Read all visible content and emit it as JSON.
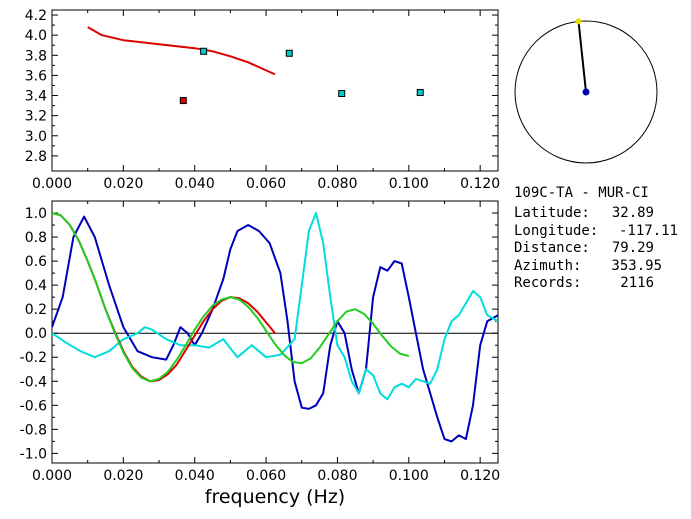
{
  "station_info": {
    "title": "109C-TA - MUR-CI",
    "rows": [
      {
        "label": "Latitude:",
        "value": "32.89"
      },
      {
        "label": "Longitude:",
        "value": "-117.11"
      },
      {
        "label": "Distance:",
        "value": "79.29"
      },
      {
        "label": "Azimuth:",
        "value": "353.95"
      },
      {
        "label": "Records:",
        "value": "2116"
      }
    ]
  },
  "azimuth_indicator": {
    "azimuth_deg": 353.95,
    "circle_color": "#000000",
    "center_color": "#0000aa",
    "tip_color": "#e0e000"
  },
  "chart_data": [
    {
      "type": "scatter",
      "title": "",
      "xlabel": "",
      "ylabel": "",
      "xlim": [
        0.0,
        0.125
      ],
      "ylim": [
        2.65,
        4.25
      ],
      "xticks": [
        "0.000",
        "0.020",
        "0.040",
        "0.060",
        "0.080",
        "0.100",
        "0.120"
      ],
      "xtick_values": [
        0.0,
        0.02,
        0.04,
        0.06,
        0.08,
        0.1,
        0.12
      ],
      "yticks": [
        "2.8",
        "3.0",
        "3.2",
        "3.4",
        "3.6",
        "3.8",
        "4.0",
        "4.2"
      ],
      "ytick_values": [
        2.8,
        3.0,
        3.2,
        3.4,
        3.6,
        3.8,
        4.0,
        4.2
      ],
      "grid": false,
      "series": [
        {
          "kind": "line",
          "color": "#dd0000",
          "x": [
            0.01,
            0.014,
            0.02,
            0.03,
            0.04,
            0.045,
            0.05,
            0.055,
            0.06,
            0.0625
          ],
          "y": [
            4.08,
            4.0,
            3.95,
            3.91,
            3.87,
            3.84,
            3.79,
            3.73,
            3.65,
            3.61
          ]
        },
        {
          "kind": "points",
          "color": "#00cccc",
          "x": [
            0.0425,
            0.0665,
            0.0812,
            0.1032
          ],
          "y": [
            3.84,
            3.82,
            3.42,
            3.43
          ]
        },
        {
          "kind": "points",
          "color": "#dd0000",
          "x": [
            0.0368
          ],
          "y": [
            3.35
          ]
        }
      ]
    },
    {
      "type": "line",
      "title": "",
      "xlabel": "frequency (Hz)",
      "ylabel": "",
      "xlim": [
        0.0,
        0.125
      ],
      "ylim": [
        -1.08,
        1.1
      ],
      "xticks": [
        "0.000",
        "0.020",
        "0.040",
        "0.060",
        "0.080",
        "0.100",
        "0.120"
      ],
      "xtick_values": [
        0.0,
        0.02,
        0.04,
        0.06,
        0.08,
        0.1,
        0.12
      ],
      "yticks": [
        "1.0",
        "0.8",
        "0.6",
        "0.4",
        "0.2",
        "0.0",
        "-0.2",
        "-0.4",
        "-0.6",
        "-0.8",
        "-1.0"
      ],
      "ytick_values": [
        1.0,
        0.8,
        0.6,
        0.4,
        0.2,
        0.0,
        -0.2,
        -0.4,
        -0.6,
        -0.8,
        -1.0
      ],
      "zero_line": true,
      "grid": false,
      "series": [
        {
          "color": "#0000bb",
          "x": [
            0.0,
            0.003,
            0.006,
            0.009,
            0.012,
            0.016,
            0.02,
            0.024,
            0.028,
            0.032,
            0.034,
            0.036,
            0.038,
            0.04,
            0.042,
            0.045,
            0.048,
            0.05,
            0.052,
            0.055,
            0.058,
            0.061,
            0.064,
            0.066,
            0.068,
            0.07,
            0.072,
            0.074,
            0.076,
            0.078,
            0.08,
            0.082,
            0.084,
            0.086,
            0.088,
            0.09,
            0.092,
            0.094,
            0.096,
            0.098,
            0.1,
            0.102,
            0.104,
            0.106,
            0.108,
            0.11,
            0.112,
            0.114,
            0.116,
            0.118,
            0.12,
            0.122,
            0.125
          ],
          "y": [
            0.05,
            0.3,
            0.8,
            0.97,
            0.8,
            0.4,
            0.05,
            -0.15,
            -0.2,
            -0.22,
            -0.1,
            0.05,
            0.0,
            -0.1,
            0.0,
            0.2,
            0.45,
            0.7,
            0.85,
            0.9,
            0.85,
            0.75,
            0.5,
            0.1,
            -0.4,
            -0.62,
            -0.63,
            -0.6,
            -0.5,
            -0.1,
            0.1,
            0.0,
            -0.3,
            -0.5,
            -0.3,
            0.3,
            0.55,
            0.52,
            0.6,
            0.58,
            0.3,
            0.0,
            -0.3,
            -0.5,
            -0.7,
            -0.88,
            -0.9,
            -0.85,
            -0.88,
            -0.6,
            -0.1,
            0.1,
            0.15
          ]
        },
        {
          "color": "#00dddd",
          "x": [
            0.0,
            0.004,
            0.008,
            0.012,
            0.016,
            0.02,
            0.024,
            0.026,
            0.028,
            0.032,
            0.036,
            0.04,
            0.044,
            0.048,
            0.052,
            0.056,
            0.06,
            0.064,
            0.068,
            0.07,
            0.072,
            0.074,
            0.076,
            0.078,
            0.08,
            0.082,
            0.084,
            0.086,
            0.088,
            0.09,
            0.092,
            0.094,
            0.096,
            0.098,
            0.1,
            0.102,
            0.104,
            0.106,
            0.108,
            0.11,
            0.112,
            0.114,
            0.116,
            0.118,
            0.12,
            0.122,
            0.125
          ],
          "y": [
            0.0,
            -0.08,
            -0.15,
            -0.2,
            -0.15,
            -0.05,
            0.0,
            0.05,
            0.03,
            -0.05,
            -0.1,
            -0.1,
            -0.12,
            -0.05,
            -0.2,
            -0.1,
            -0.2,
            -0.18,
            -0.05,
            0.4,
            0.85,
            1.0,
            0.75,
            0.3,
            -0.1,
            -0.2,
            -0.4,
            -0.5,
            -0.3,
            -0.35,
            -0.5,
            -0.55,
            -0.45,
            -0.42,
            -0.45,
            -0.38,
            -0.4,
            -0.42,
            -0.3,
            -0.05,
            0.1,
            0.15,
            0.25,
            0.35,
            0.3,
            0.15,
            0.1
          ]
        },
        {
          "color": "#dd0000",
          "x": [
            0.0,
            0.0025,
            0.005,
            0.0075,
            0.01,
            0.0125,
            0.015,
            0.0175,
            0.02,
            0.0225,
            0.025,
            0.0275,
            0.03,
            0.0325,
            0.035,
            0.0375,
            0.04,
            0.0425,
            0.045,
            0.0475,
            0.05,
            0.0525,
            0.055,
            0.0575,
            0.06,
            0.0625
          ],
          "y": [
            1.0,
            0.98,
            0.9,
            0.77,
            0.6,
            0.41,
            0.2,
            0.02,
            -0.15,
            -0.28,
            -0.36,
            -0.4,
            -0.39,
            -0.34,
            -0.26,
            -0.14,
            -0.02,
            0.1,
            0.2,
            0.27,
            0.3,
            0.29,
            0.25,
            0.18,
            0.09,
            0.0
          ]
        },
        {
          "color": "#22cc22",
          "x": [
            0.0,
            0.0025,
            0.005,
            0.0075,
            0.01,
            0.0125,
            0.015,
            0.0175,
            0.02,
            0.0225,
            0.025,
            0.0275,
            0.03,
            0.0325,
            0.035,
            0.0375,
            0.04,
            0.0425,
            0.045,
            0.0475,
            0.05,
            0.0525,
            0.055,
            0.0575,
            0.06,
            0.0625,
            0.065,
            0.0675,
            0.07,
            0.0725,
            0.075,
            0.0775,
            0.08,
            0.0825,
            0.085,
            0.0875,
            0.09,
            0.0925,
            0.095,
            0.0975,
            0.1
          ],
          "y": [
            1.0,
            0.98,
            0.9,
            0.77,
            0.6,
            0.41,
            0.2,
            0.01,
            -0.16,
            -0.29,
            -0.37,
            -0.4,
            -0.38,
            -0.32,
            -0.22,
            -0.1,
            0.03,
            0.14,
            0.23,
            0.28,
            0.3,
            0.28,
            0.22,
            0.13,
            0.02,
            -0.09,
            -0.18,
            -0.24,
            -0.25,
            -0.21,
            -0.12,
            -0.01,
            0.1,
            0.18,
            0.2,
            0.16,
            0.08,
            -0.02,
            -0.11,
            -0.17,
            -0.19
          ]
        }
      ]
    }
  ]
}
